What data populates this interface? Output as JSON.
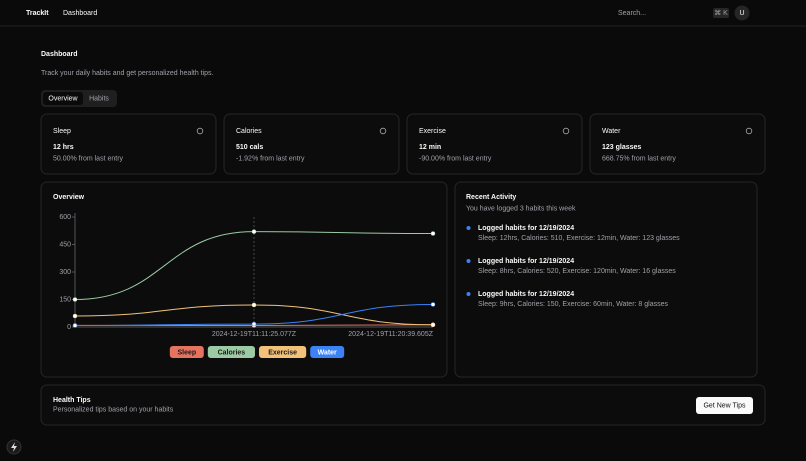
{
  "header": {
    "brand": "TrackIt",
    "nav": "Dashboard",
    "search": "Search...",
    "shortcut": "⌘ K",
    "avatar": "U"
  },
  "page": {
    "title": "Dashboard",
    "subtitle": "Track your daily habits and get personalized health tips.",
    "tabs": [
      "Overview",
      "Habits"
    ]
  },
  "stats": [
    {
      "label": "Sleep",
      "value": "12 hrs",
      "change": "50.00% from last entry"
    },
    {
      "label": "Calories",
      "value": "510 cals",
      "change": "-1.92% from last entry"
    },
    {
      "label": "Exercise",
      "value": "12 min",
      "change": "-90.00% from last entry"
    },
    {
      "label": "Water",
      "value": "123 glasses",
      "change": "668.75% from last entry"
    }
  ],
  "chart_data": {
    "type": "line",
    "title": "Overview",
    "categories": [
      null,
      "2024-12-19T11:11:25.077Z",
      "2024-12-19T11:20:39.605Z"
    ],
    "series": [
      {
        "name": "Sleep",
        "color": "#e5735f",
        "values": [
          9,
          8,
          12
        ]
      },
      {
        "name": "Calories",
        "color": "#9ccaa4",
        "values": [
          150,
          520,
          510
        ]
      },
      {
        "name": "Exercise",
        "color": "#f2c27a",
        "values": [
          60,
          120,
          12
        ]
      },
      {
        "name": "Water",
        "color": "#3b82f6",
        "values": [
          8,
          16,
          123
        ]
      }
    ],
    "ylim": [
      0,
      600
    ],
    "yticks": [
      0,
      150,
      300,
      450,
      600
    ]
  },
  "activity": {
    "title": "Recent Activity",
    "subtitle": "You have logged 3 habits this week",
    "items": [
      {
        "title": "Logged habits for 12/19/2024",
        "detail": "Sleep: 12hrs, Calories: 510, Exercise: 12min, Water: 123 glasses"
      },
      {
        "title": "Logged habits for 12/19/2024",
        "detail": "Sleep: 8hrs, Calories: 520, Exercise: 120min, Water: 16 glasses"
      },
      {
        "title": "Logged habits for 12/19/2024",
        "detail": "Sleep: 9hrs, Calories: 150, Exercise: 60min, Water: 8 glasses"
      }
    ]
  },
  "tips": {
    "title": "Health Tips",
    "subtitle": "Personalized tips based on your habits",
    "button": "Get New Tips"
  }
}
